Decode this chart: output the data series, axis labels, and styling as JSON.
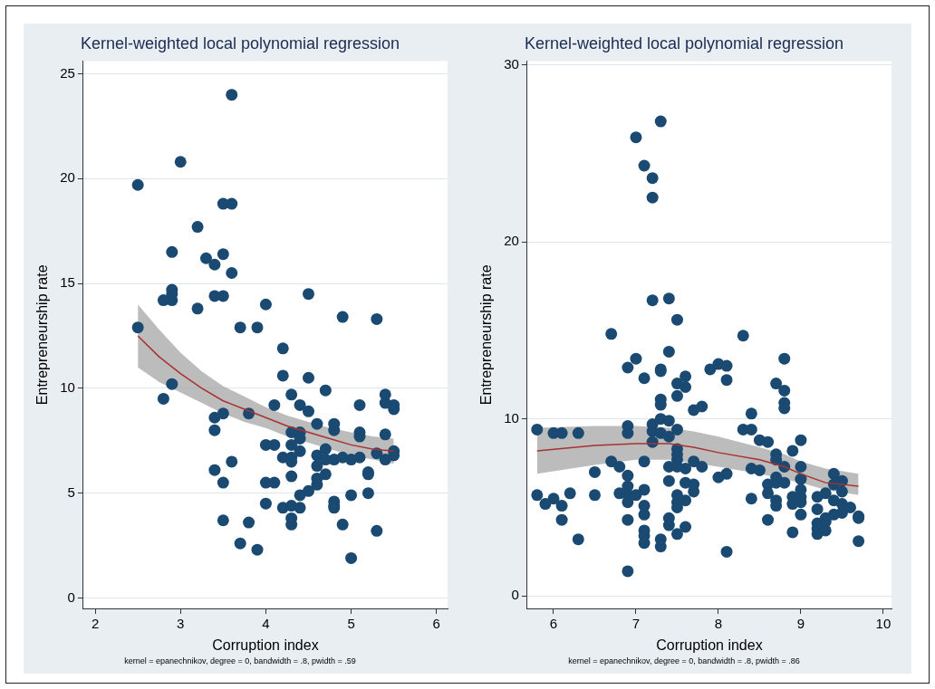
{
  "chart_data": [
    {
      "type": "scatter",
      "title": "Kernel-weighted local polynomial regression",
      "xlabel": "Corruption index",
      "ylabel": "Entrepreneurship rate",
      "annotations": [
        "kernel = epanechnikov, degree = 0, bandwidth = .8, pwidth = .59"
      ],
      "xlim": [
        1.86,
        6.13
      ],
      "ylim": [
        -0.5,
        25.6
      ],
      "xticks": [
        2,
        3,
        4,
        5,
        6
      ],
      "yticks": [
        0,
        5,
        10,
        15,
        20,
        25
      ],
      "grid": "y",
      "legend": false,
      "series": [
        {
          "type": "scatter",
          "color": "#1a4a72",
          "marker": "circle",
          "x": [
            2.5,
            2.5,
            2.8,
            2.9,
            2.8,
            2.9,
            2.9,
            2.9,
            2.9,
            3.0,
            3.2,
            3.2,
            3.3,
            3.4,
            3.5,
            3.6,
            3.4,
            3.5,
            3.5,
            3.6,
            3.6,
            3.7,
            3.9,
            4.0,
            4.5,
            4.9,
            5.3,
            4.2,
            3.4,
            3.5,
            3.4,
            3.8,
            4.1,
            4.2,
            4.5,
            4.3,
            4.7,
            4.4,
            4.5,
            5.1,
            5.4,
            5.4,
            5.5,
            5.5,
            4.6,
            4.8,
            4.8,
            5.1,
            5.1,
            5.4,
            4.3,
            4.4,
            4.4,
            4.3,
            4.0,
            4.1,
            4.7,
            4.4,
            4.2,
            4.3,
            4.3,
            4.6,
            4.6,
            4.7,
            4.8,
            4.9,
            5.0,
            5.1,
            5.3,
            5.4,
            5.5,
            5.5,
            3.6,
            3.4,
            3.5,
            4.0,
            4.1,
            4.3,
            4.6,
            4.6,
            4.5,
            4.7,
            5.2,
            5.2,
            4.4,
            5.0,
            5.2,
            4.0,
            4.2,
            4.3,
            4.4,
            4.8,
            4.8,
            4.8,
            4.9,
            4.3,
            4.3,
            3.5,
            3.8,
            5.3,
            3.7,
            3.9,
            5.0
          ],
          "values": [
            19.7,
            12.9,
            9.5,
            10.2,
            14.2,
            14.2,
            14.5,
            14.7,
            16.5,
            20.8,
            17.7,
            13.8,
            16.2,
            15.9,
            16.4,
            15.5,
            14.4,
            14.4,
            18.8,
            18.8,
            24.0,
            12.9,
            12.9,
            14.0,
            14.5,
            13.4,
            13.3,
            11.9,
            8.6,
            8.8,
            8.0,
            8.8,
            9.2,
            10.6,
            10.5,
            9.7,
            9.9,
            9.2,
            8.9,
            9.2,
            9.7,
            9.3,
            9.2,
            9.0,
            8.3,
            8.3,
            8.0,
            7.9,
            7.7,
            7.8,
            7.9,
            7.9,
            7.6,
            7.3,
            7.3,
            7.3,
            7.1,
            7.0,
            6.7,
            6.7,
            6.5,
            6.8,
            6.3,
            6.6,
            6.6,
            6.7,
            6.6,
            6.7,
            6.9,
            6.6,
            7.0,
            6.8,
            6.5,
            6.1,
            5.5,
            5.5,
            5.5,
            5.8,
            5.7,
            5.4,
            5.1,
            5.9,
            6.0,
            5.9,
            4.9,
            4.9,
            5.0,
            4.5,
            4.3,
            4.4,
            4.3,
            4.6,
            4.4,
            4.3,
            3.5,
            3.8,
            3.5,
            3.7,
            3.6,
            3.2,
            2.6,
            2.3,
            1.9
          ]
        },
        {
          "type": "line",
          "color": "#a83232",
          "marker": "none",
          "x": [
            2.5,
            2.75,
            3.0,
            3.25,
            3.5,
            3.75,
            4.0,
            4.25,
            4.5,
            4.75,
            5.0,
            5.25,
            5.5
          ],
          "values": [
            12.5,
            11.5,
            10.7,
            10.0,
            9.4,
            9.0,
            8.6,
            8.2,
            7.9,
            7.6,
            7.3,
            7.1,
            7.0
          ],
          "lower": [
            11.0,
            10.3,
            9.8,
            9.3,
            8.8,
            8.4,
            8.1,
            7.7,
            7.4,
            7.1,
            6.8,
            6.6,
            6.4
          ],
          "upper": [
            14.0,
            12.8,
            11.7,
            10.8,
            10.1,
            9.6,
            9.1,
            8.7,
            8.4,
            8.1,
            7.9,
            7.7,
            7.6
          ]
        }
      ]
    },
    {
      "type": "scatter",
      "title": "Kernel-weighted local polynomial regression",
      "xlabel": "Corruption index",
      "ylabel": "Entrepreneurship rate",
      "annotations": [
        "kernel = epanechnikov, degree = 0, bandwidth = .8, pwidth = .86"
      ],
      "xlim": [
        5.68,
        10.1
      ],
      "ylim": [
        -0.7,
        30.2
      ],
      "xticks": [
        6,
        7,
        8,
        9,
        10
      ],
      "yticks": [
        0,
        10,
        20,
        30
      ],
      "grid": "y",
      "legend": false,
      "series": [
        {
          "type": "scatter",
          "color": "#1a4a72",
          "marker": "circle",
          "x": [
            7.3,
            7.0,
            7.1,
            7.2,
            7.2,
            7.2,
            7.4,
            7.5,
            6.7,
            8.3,
            7.4,
            6.9,
            7.0,
            7.1,
            7.3,
            7.3,
            7.5,
            7.6,
            7.6,
            7.5,
            7.9,
            8.0,
            8.1,
            8.1,
            8.8,
            8.7,
            8.8,
            8.8,
            8.8,
            7.3,
            7.3,
            7.7,
            7.8,
            8.4,
            7.3,
            7.4,
            7.2,
            7.2,
            6.9,
            6.9,
            5.8,
            6.0,
            6.1,
            6.3,
            7.5,
            7.3,
            7.4,
            7.2,
            8.3,
            8.4,
            8.5,
            8.6,
            9.0,
            8.9,
            8.7,
            8.7,
            6.7,
            7.1,
            7.5,
            7.5,
            7.5,
            7.5,
            7.7,
            7.8,
            6.8,
            7.4,
            7.6,
            8.4,
            8.5,
            8.8,
            9.0,
            6.5,
            6.9,
            8.0,
            8.1,
            9.0,
            8.7,
            8.7,
            8.8,
            7.4,
            7.6,
            7.7,
            7.7,
            9.4,
            9.5,
            9.4,
            8.6,
            8.6,
            9.0,
            9.3,
            9.5,
            5.8,
            6.0,
            5.9,
            6.1,
            6.2,
            6.5,
            6.8,
            6.9,
            6.9,
            6.9,
            7.0,
            7.1,
            7.1,
            7.1,
            7.5,
            7.5,
            7.5,
            7.6,
            8.4,
            8.7,
            8.7,
            8.9,
            8.9,
            9.0,
            9.0,
            9.2,
            9.2,
            9.4,
            9.5,
            9.6,
            9.5,
            9.4,
            9.3,
            9.0,
            9.7,
            9.7,
            6.1,
            6.9,
            8.6,
            7.4,
            7.4,
            7.6,
            7.5,
            9.2,
            9.2,
            9.2,
            9.3,
            9.3,
            8.9,
            7.1,
            7.1,
            7.1,
            7.3,
            7.3,
            6.3,
            9.7,
            8.1,
            6.9
          ],
          "values": [
            26.8,
            25.9,
            24.3,
            23.6,
            22.5,
            16.7,
            16.8,
            15.6,
            14.8,
            14.7,
            13.8,
            12.9,
            13.4,
            12.3,
            12.8,
            12.7,
            12.0,
            12.4,
            11.8,
            11.3,
            12.8,
            13.1,
            13.0,
            12.2,
            13.4,
            12.0,
            11.6,
            10.9,
            10.6,
            11.1,
            10.8,
            10.5,
            10.7,
            10.3,
            10.0,
            9.9,
            9.7,
            9.3,
            9.6,
            9.2,
            9.4,
            9.2,
            9.2,
            9.2,
            9.4,
            9.2,
            9.0,
            8.7,
            9.4,
            9.4,
            8.8,
            8.7,
            8.8,
            8.2,
            8.0,
            7.7,
            7.6,
            7.6,
            8.3,
            8.0,
            7.7,
            7.3,
            7.6,
            7.3,
            7.3,
            7.3,
            7.2,
            7.2,
            7.1,
            7.3,
            7.3,
            7.0,
            6.8,
            6.7,
            6.9,
            6.6,
            6.7,
            6.4,
            6.4,
            6.5,
            6.4,
            6.3,
            5.9,
            6.9,
            6.5,
            6.3,
            6.3,
            5.8,
            6.0,
            5.8,
            5.9,
            5.7,
            5.5,
            5.2,
            5.1,
            5.8,
            5.7,
            5.8,
            6.2,
            5.7,
            5.3,
            5.7,
            6.0,
            5.1,
            4.6,
            5.7,
            5.3,
            5.0,
            5.4,
            5.5,
            5.4,
            5.1,
            5.6,
            5.2,
            5.6,
            5.3,
            5.6,
            4.9,
            5.4,
            5.2,
            5.0,
            4.7,
            4.6,
            4.4,
            4.6,
            4.5,
            4.4,
            4.3,
            4.3,
            4.3,
            4.4,
            4.0,
            3.9,
            3.5,
            4.1,
            3.8,
            3.5,
            4.2,
            3.7,
            3.6,
            3.7,
            3.4,
            3.0,
            3.2,
            2.8,
            3.2,
            3.1,
            2.5,
            1.4
          ]
        },
        {
          "type": "line",
          "color": "#a83232",
          "marker": "none",
          "x": [
            5.8,
            6.5,
            7.0,
            7.4,
            7.7,
            8.0,
            8.5,
            8.8,
            9.0,
            9.3,
            9.7
          ],
          "values": [
            8.2,
            8.5,
            8.6,
            8.6,
            8.4,
            8.1,
            7.7,
            7.3,
            6.9,
            6.4,
            6.2
          ],
          "lower": [
            6.9,
            7.4,
            7.7,
            7.7,
            7.5,
            7.3,
            6.9,
            6.6,
            6.4,
            6.0,
            5.7
          ],
          "upper": [
            9.5,
            9.6,
            9.6,
            9.5,
            9.3,
            9.0,
            8.4,
            8.0,
            7.6,
            7.2,
            6.9
          ]
        }
      ]
    }
  ]
}
